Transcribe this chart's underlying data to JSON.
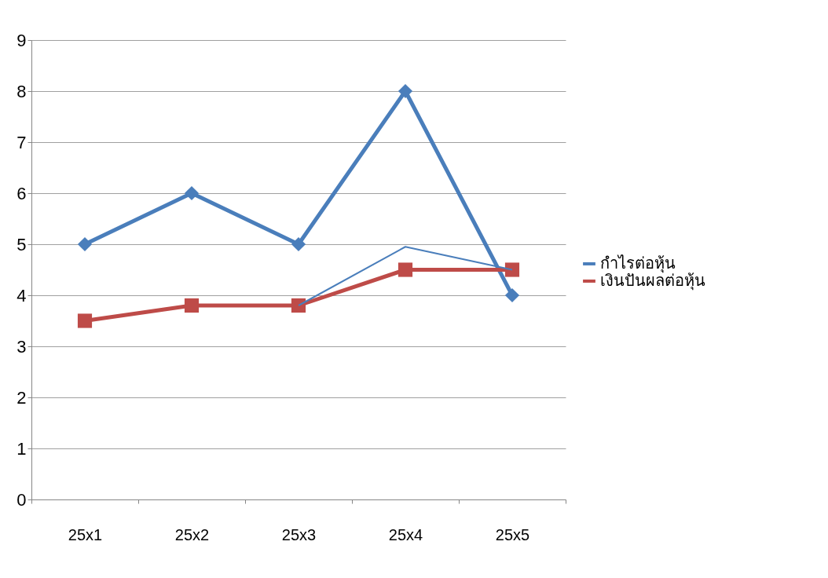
{
  "chart_data": {
    "type": "line",
    "categories": [
      "25x1",
      "25x2",
      "25x3",
      "25x4",
      "25x5"
    ],
    "series": [
      {
        "name": "กำไรต่อหุ้น",
        "color": "#4a7ebb",
        "marker": "diamond",
        "values": [
          5,
          6,
          5,
          8,
          4
        ]
      },
      {
        "name": "เงินปันผลต่อหุ้น",
        "color": "#be4b48",
        "marker": "square",
        "values": [
          3.5,
          3.8,
          3.8,
          4.5,
          4.5
        ]
      },
      {
        "color": "#4a7ebb",
        "marker": "none",
        "line_style": "solid",
        "values": [
          null,
          null,
          3.8,
          4.95,
          4.5
        ]
      }
    ],
    "ylim": [
      0,
      9
    ],
    "yticks": [
      0,
      1,
      2,
      3,
      4,
      5,
      6,
      7,
      8,
      9
    ],
    "grid": "y",
    "legend": "right"
  }
}
